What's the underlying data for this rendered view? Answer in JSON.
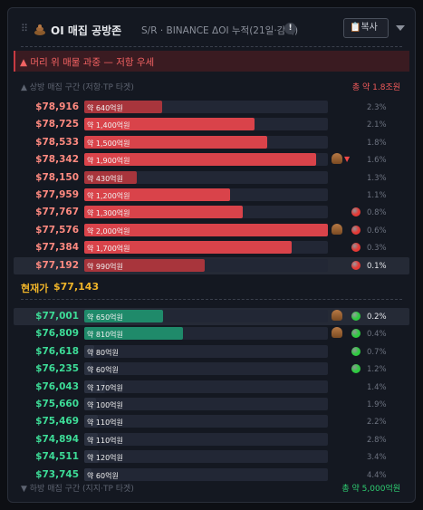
{
  "header": {
    "title": "OI 매집 공방존",
    "subtitle": "S/R · BINANCE ΔOI 누적(21일·감쇠)",
    "info": "!",
    "copy_button": "복사"
  },
  "banner": "▲ 머리 위 매물 과중 — 저항 우세",
  "upper": {
    "label": "▲ 상방 매집 구간 (저항·TP 타겟)",
    "total": "총 약 1.8조원",
    "rows": [
      {
        "price": "$78,916",
        "amount": 640,
        "amount_label": "약 640억원",
        "share": "2.3%",
        "color": "#a8353c"
      },
      {
        "price": "$78,725",
        "amount": 1400,
        "amount_label": "약 1,400억원",
        "share": "2.1%",
        "color": "#d9434a"
      },
      {
        "price": "$78,533",
        "amount": 1500,
        "amount_label": "약 1,500억원",
        "share": "1.8%",
        "color": "#d9434a"
      },
      {
        "price": "$78,342",
        "amount": 1900,
        "amount_label": "약 1,900억원",
        "share": "1.6%",
        "color": "#d9434a",
        "pile": true,
        "arrow": true
      },
      {
        "price": "$78,150",
        "amount": 430,
        "amount_label": "약 430억원",
        "share": "1.3%",
        "color": "#a8353c"
      },
      {
        "price": "$77,959",
        "amount": 1200,
        "amount_label": "약 1,200억원",
        "share": "1.1%",
        "color": "#d9434a"
      },
      {
        "price": "$77,767",
        "amount": 1300,
        "amount_label": "약 1,300억원",
        "share": "0.8%",
        "color": "#d9434a",
        "dot": "#e53935"
      },
      {
        "price": "$77,576",
        "amount": 2000,
        "amount_label": "약 2,000억원",
        "share": "0.6%",
        "color": "#d9434a",
        "pile": true,
        "dot": "#e53935"
      },
      {
        "price": "$77,384",
        "amount": 1700,
        "amount_label": "약 1,700억원",
        "share": "0.3%",
        "color": "#d9434a",
        "dot": "#e53935"
      },
      {
        "price": "$77,192",
        "amount": 990,
        "amount_label": "약 990억원",
        "share": "0.1%",
        "color": "#a8353c",
        "dot": "#e53935",
        "highlight": true
      }
    ]
  },
  "current": {
    "label": "현재가",
    "price": "$77,143"
  },
  "lower": {
    "label": "▼ 하방 매집 구간 (지지·TP 타겟)",
    "total": "총 약 5,000억원",
    "rows": [
      {
        "price": "$77,001",
        "amount": 650,
        "amount_label": "약 650억원",
        "share": "0.2%",
        "color": "#1f8a6a",
        "pile": true,
        "dot": "#2ecc40",
        "highlight": true
      },
      {
        "price": "$76,809",
        "amount": 810,
        "amount_label": "약 810억원",
        "share": "0.4%",
        "color": "#1f8a6a",
        "pile": true,
        "dot": "#2ecc40"
      },
      {
        "price": "$76,618",
        "amount": 80,
        "amount_label": "약 80억원",
        "share": "0.7%",
        "color": "#2b3140",
        "dot": "#2ecc40"
      },
      {
        "price": "$76,235",
        "amount": 60,
        "amount_label": "약 60억원",
        "share": "1.2%",
        "color": "#2b3140",
        "dot": "#2ecc40"
      },
      {
        "price": "$76,043",
        "amount": 170,
        "amount_label": "약 170억원",
        "share": "1.4%",
        "color": "#2b3140"
      },
      {
        "price": "$75,660",
        "amount": 100,
        "amount_label": "약 100억원",
        "share": "1.9%",
        "color": "#2b3140"
      },
      {
        "price": "$75,469",
        "amount": 110,
        "amount_label": "약 110억원",
        "share": "2.2%",
        "color": "#2b3140"
      },
      {
        "price": "$74,894",
        "amount": 110,
        "amount_label": "약 110억원",
        "share": "2.8%",
        "color": "#2b3140"
      },
      {
        "price": "$74,511",
        "amount": 120,
        "amount_label": "약 120억원",
        "share": "3.4%",
        "color": "#2b3140"
      },
      {
        "price": "$73,745",
        "amount": 60,
        "amount_label": "약 60억원",
        "share": "4.4%",
        "color": "#2b3140"
      }
    ]
  }
}
